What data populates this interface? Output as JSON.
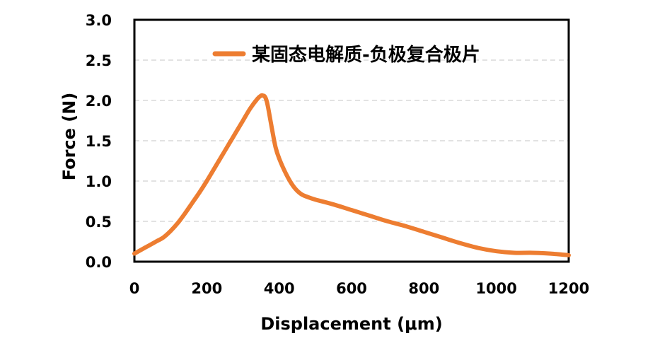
{
  "chart_data": {
    "type": "line",
    "xlabel": "Displacement (μm)",
    "ylabel": "Force (N)",
    "xlim": [
      0,
      1200
    ],
    "ylim": [
      0,
      3.0
    ],
    "x_ticks": [
      "0",
      "200",
      "400",
      "600",
      "800",
      "1000",
      "1200"
    ],
    "y_ticks": [
      "0.0",
      "0.5",
      "1.0",
      "1.5",
      "2.0",
      "2.5",
      "3.0"
    ],
    "grid": "horizontal dashed",
    "legend_position": "top-right",
    "series": [
      {
        "name": "某固态电解质-负极复合极片",
        "color": "#ED7D31",
        "x": [
          0,
          20,
          40,
          60,
          80,
          100,
          120,
          140,
          160,
          180,
          200,
          220,
          240,
          260,
          280,
          300,
          320,
          340,
          350,
          355,
          360,
          365,
          370,
          380,
          390,
          400,
          420,
          440,
          460,
          480,
          500,
          550,
          600,
          650,
          700,
          750,
          800,
          850,
          900,
          950,
          1000,
          1050,
          1100,
          1150,
          1200
        ],
        "y": [
          0.1,
          0.15,
          0.2,
          0.25,
          0.3,
          0.38,
          0.48,
          0.6,
          0.73,
          0.86,
          1.0,
          1.15,
          1.3,
          1.45,
          1.6,
          1.75,
          1.9,
          2.02,
          2.06,
          2.06,
          2.05,
          2.0,
          1.9,
          1.65,
          1.42,
          1.28,
          1.08,
          0.93,
          0.84,
          0.8,
          0.77,
          0.71,
          0.64,
          0.57,
          0.5,
          0.44,
          0.37,
          0.3,
          0.23,
          0.17,
          0.13,
          0.11,
          0.11,
          0.1,
          0.08
        ]
      }
    ]
  }
}
